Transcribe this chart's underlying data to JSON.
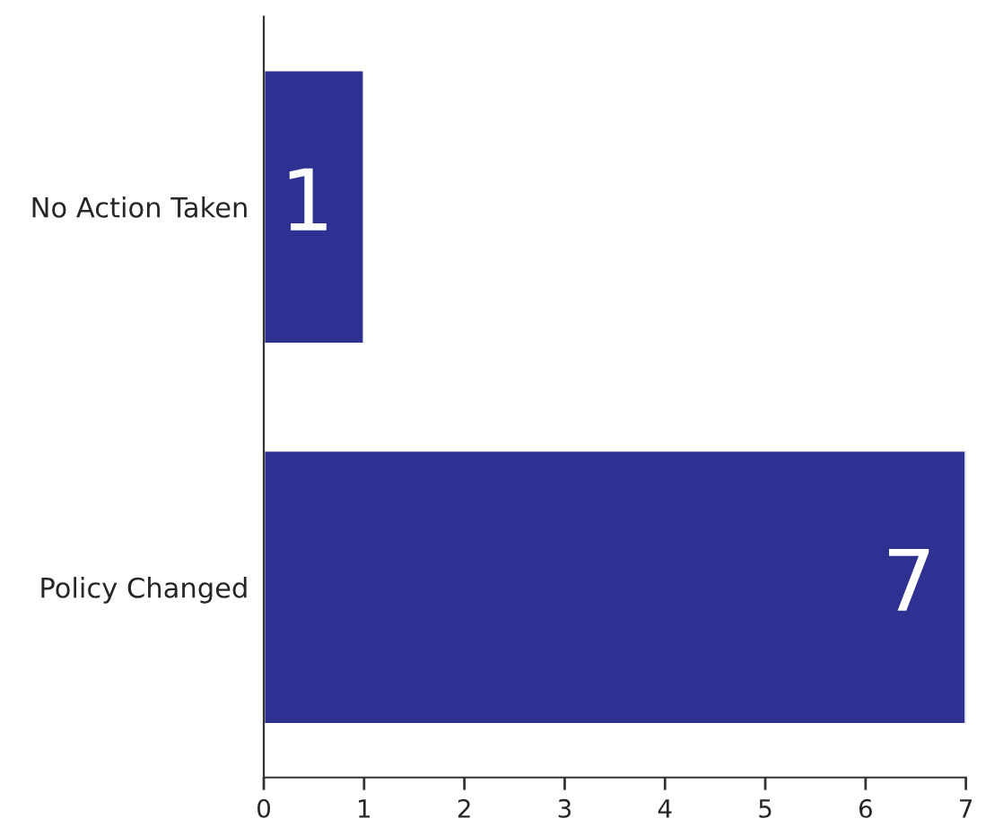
{
  "chart_data": {
    "type": "bar",
    "orientation": "horizontal",
    "categories": [
      "No Action Taken",
      "Policy Changed"
    ],
    "values": [
      1,
      7
    ],
    "color": "#2e3192",
    "xlim": [
      0,
      7
    ],
    "xticks": [
      0,
      1,
      2,
      3,
      4,
      5,
      6,
      7
    ],
    "data_labels": true,
    "grid": false,
    "legend": false
  }
}
